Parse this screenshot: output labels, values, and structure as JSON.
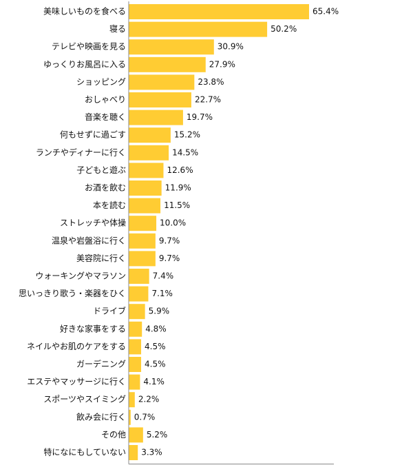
{
  "chart_data": {
    "type": "bar",
    "orientation": "horizontal",
    "categories": [
      "美味しいものを食べる",
      "寝る",
      "テレビや映画を見る",
      "ゆっくりお風呂に入る",
      "ショッピング",
      "おしゃべり",
      "音楽を聴く",
      "何もせずに過ごす",
      "ランチやディナーに行く",
      "子どもと遊ぶ",
      "お酒を飲む",
      "本を読む",
      "ストレッチや体操",
      "温泉や岩盤浴に行く",
      "美容院に行く",
      "ウォーキングやマラソン",
      "思いっきり歌う・楽器をひく",
      "ドライブ",
      "好きな家事をする",
      "ネイルやお肌のケアをする",
      "ガーデニング",
      "エステやマッサージに行く",
      "スポーツやスイミング",
      "飲み会に行く",
      "その他",
      "特になにもしていない"
    ],
    "values": [
      65.4,
      50.2,
      30.9,
      27.9,
      23.8,
      22.7,
      19.7,
      15.2,
      14.5,
      12.6,
      11.9,
      11.5,
      10.0,
      9.7,
      9.7,
      7.4,
      7.1,
      5.9,
      4.8,
      4.5,
      4.5,
      4.1,
      2.2,
      0.7,
      5.2,
      3.3
    ],
    "value_labels": [
      "65.4%",
      "50.2%",
      "30.9%",
      "27.9%",
      "23.8%",
      "22.7%",
      "19.7%",
      "15.2%",
      "14.5%",
      "12.6%",
      "11.9%",
      "11.5%",
      "10.0%",
      "9.7%",
      "9.7%",
      "7.4%",
      "7.1%",
      "5.9%",
      "4.8%",
      "4.5%",
      "4.5%",
      "4.1%",
      "2.2%",
      "0.7%",
      "5.2%",
      "3.3%"
    ],
    "xlim": [
      0,
      100
    ],
    "grid": false,
    "legend": "none",
    "title": "",
    "xlabel": "",
    "ylabel": ""
  },
  "colors": {
    "bar": "#FFCC33",
    "axis": "#888888",
    "text": "#111111"
  }
}
